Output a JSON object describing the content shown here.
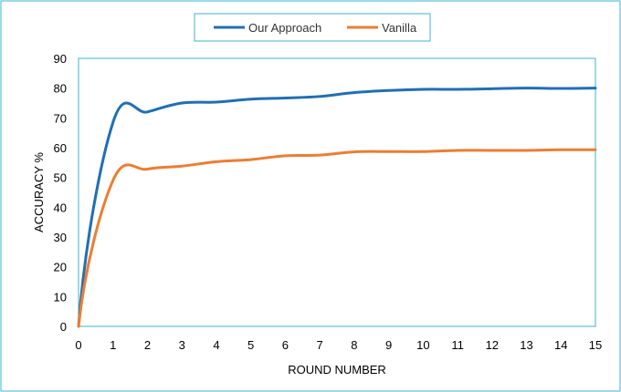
{
  "chart_data": {
    "type": "line",
    "title": "",
    "xlabel": "ROUND NUMBER",
    "ylabel": "ACCURACY %",
    "x": [
      0,
      1,
      2,
      3,
      4,
      5,
      6,
      7,
      8,
      9,
      10,
      11,
      12,
      13,
      14,
      15
    ],
    "xlim": [
      0,
      15
    ],
    "ylim": [
      0,
      90
    ],
    "xticks": [
      "0",
      "1",
      "2",
      "3",
      "4",
      "5",
      "6",
      "7",
      "8",
      "9",
      "10",
      "11",
      "12",
      "13",
      "14",
      "15"
    ],
    "yticks": [
      "0",
      "10",
      "20",
      "30",
      "40",
      "50",
      "60",
      "70",
      "80",
      "90"
    ],
    "grid": false,
    "legend_position": "top-center",
    "series": [
      {
        "name": "Our Approach",
        "color": "#1F6FB5",
        "values": [
          0,
          68.5,
          72,
          75,
          75.3,
          76.3,
          76.7,
          77.2,
          78.5,
          79.2,
          79.6,
          79.6,
          79.8,
          80,
          79.9,
          80
        ]
      },
      {
        "name": "Vanilla",
        "color": "#ED7D31",
        "values": [
          0,
          49,
          52.8,
          53.8,
          55.3,
          56,
          57.3,
          57.5,
          58.6,
          58.7,
          58.7,
          59.1,
          59.1,
          59.1,
          59.3,
          59.3
        ]
      }
    ],
    "frame_color": "#3AB4D6",
    "axis_color": "#3AB4D6"
  }
}
